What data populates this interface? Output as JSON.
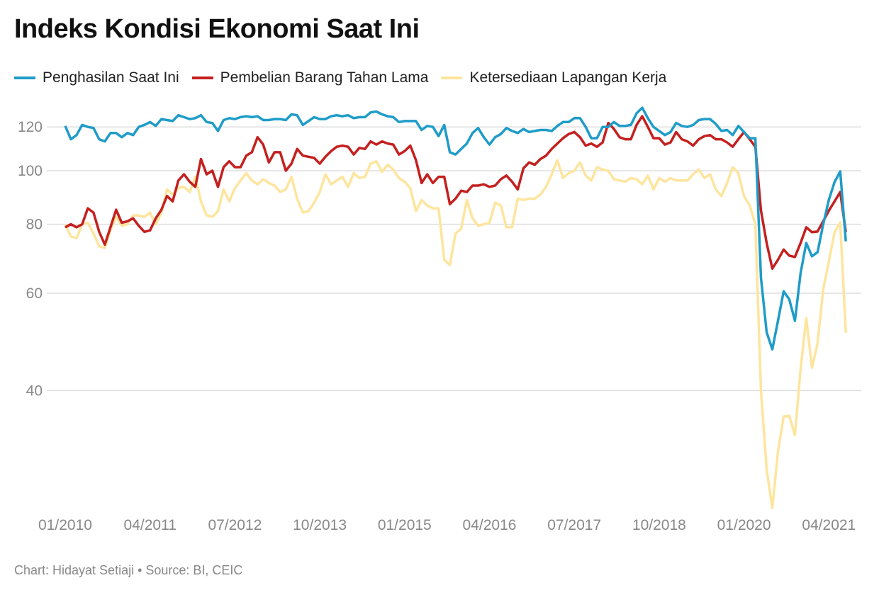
{
  "chart_data": {
    "type": "line",
    "title": "Indeks Kondisi Ekonomi Saat Ini",
    "xlabel": "",
    "ylabel": "",
    "yscale": "log",
    "ylim": [
      23,
      135
    ],
    "yticks": [
      40,
      60,
      80,
      100,
      120
    ],
    "grid": true,
    "legend_placement": "top-left",
    "x_start": "01/2010",
    "x_frequency": "monthly",
    "x_tick_labels": [
      {
        "label": "01/2010",
        "index": 0
      },
      {
        "label": "04/2011",
        "index": 15
      },
      {
        "label": "07/2012",
        "index": 30
      },
      {
        "label": "10/2013",
        "index": 45
      },
      {
        "label": "01/2015",
        "index": 60
      },
      {
        "label": "04/2016",
        "index": 75
      },
      {
        "label": "07/2017",
        "index": 90
      },
      {
        "label": "10/2018",
        "index": 105
      },
      {
        "label": "01/2020",
        "index": 120
      },
      {
        "label": "04/2021",
        "index": 135
      }
    ],
    "series": [
      {
        "name": "Penghasilan Saat Ini",
        "color": "#1f9cc8",
        "values": [
          120.5,
          114,
          116,
          121,
          120,
          119.5,
          114,
          113,
          117,
          117,
          115,
          117,
          116,
          120,
          121,
          122.5,
          120.5,
          124,
          123.5,
          123,
          126,
          125,
          124,
          124.5,
          126,
          122.5,
          122,
          118,
          123.5,
          124.5,
          124,
          125,
          125.5,
          125,
          125.5,
          123.5,
          123.5,
          124,
          124,
          123.5,
          126.5,
          126,
          121,
          123,
          125,
          124,
          124,
          125.5,
          126,
          125.5,
          126,
          124.5,
          125,
          125,
          127.5,
          128,
          126.5,
          125.5,
          125,
          122.5,
          123,
          123,
          123,
          118.5,
          120.5,
          120,
          115.5,
          121,
          108,
          107,
          109.5,
          112,
          117,
          119.5,
          115,
          111.5,
          115,
          116.5,
          119.5,
          118,
          117,
          119,
          117.5,
          118,
          118.5,
          118.5,
          118,
          120.5,
          122.5,
          122.5,
          124.5,
          124.5,
          120,
          114.5,
          114.5,
          120,
          120,
          122.5,
          120.5,
          120.5,
          121,
          127,
          130,
          124.5,
          120,
          118,
          116,
          117.5,
          122,
          120.5,
          120,
          121,
          123.5,
          124,
          124,
          121.5,
          118,
          118.5,
          116,
          120.5,
          117.5,
          114.5,
          114.5,
          64,
          51,
          47.5,
          53.5,
          60.5,
          58.5,
          53.5,
          65.3,
          74,
          70,
          71.2,
          80,
          88.6,
          95.4,
          99.7,
          74.5
        ]
      },
      {
        "name": "Pembelian Barang Tahan Lama",
        "color": "#c4201f",
        "values": [
          79,
          80,
          79,
          80,
          85.5,
          84,
          77.5,
          73.5,
          79,
          85,
          80.5,
          81,
          82,
          79.5,
          77.5,
          78,
          82,
          85,
          90,
          88,
          96,
          98.5,
          95.5,
          93.5,
          105,
          98.5,
          100,
          93.5,
          101.5,
          104,
          101.5,
          101.5,
          106.5,
          108,
          115,
          111.5,
          103.5,
          108,
          108,
          100,
          103,
          109.5,
          106.5,
          106,
          105.5,
          103,
          106,
          108.5,
          110.5,
          111,
          110.5,
          107,
          110,
          109.5,
          113,
          111.5,
          113,
          112,
          111.5,
          107,
          108.5,
          111,
          104.5,
          95,
          98.5,
          95,
          97.5,
          97.5,
          87,
          89,
          92,
          91.5,
          94,
          94,
          94.5,
          93.5,
          94,
          96.5,
          98,
          95.5,
          92.5,
          101,
          103.5,
          102.5,
          105,
          106.5,
          109.5,
          112,
          114.5,
          116.5,
          117.5,
          115,
          111,
          112,
          110.5,
          112.5,
          122,
          119,
          115,
          114,
          114,
          121,
          125.5,
          120,
          114.5,
          114.5,
          111.5,
          112.5,
          117.5,
          114,
          113,
          111,
          114,
          115.5,
          116,
          114,
          114,
          112.5,
          110.5,
          114,
          117.5,
          114,
          110.5,
          84.7,
          74,
          66.5,
          69,
          72,
          70.2,
          69.8,
          74,
          79,
          77.4,
          77.6,
          81,
          84.7,
          88,
          91.5,
          77.4
        ]
      },
      {
        "name": "Ketersediaan Lapangan Kerja",
        "color": "#fde59e",
        "values": [
          80,
          76,
          75.5,
          80,
          80.5,
          77,
          73,
          72.5,
          78,
          82.5,
          79.5,
          80,
          83,
          83,
          82.5,
          84,
          80,
          84,
          92.5,
          90.5,
          93,
          93.5,
          91.5,
          97.5,
          88,
          83,
          82.5,
          84.5,
          92.5,
          88,
          93,
          96,
          99,
          96,
          94.5,
          96.5,
          95,
          94,
          91.5,
          92.5,
          97.5,
          89,
          84,
          84.5,
          87.5,
          91.5,
          98.5,
          94.5,
          96,
          97.5,
          93.5,
          99,
          97,
          97.5,
          103,
          104,
          99.5,
          102.5,
          100.5,
          97,
          95.5,
          93,
          84.5,
          88.5,
          86.5,
          85.5,
          85.5,
          69,
          67.5,
          77,
          78.5,
          88.5,
          82,
          79.5,
          80,
          80.5,
          87.5,
          86.5,
          79,
          79,
          89,
          88.5,
          89,
          89,
          90.5,
          93.5,
          98.5,
          104.5,
          97,
          99,
          100,
          103.5,
          98,
          96,
          101.5,
          100.5,
          100,
          96.5,
          96,
          95.5,
          97,
          96.5,
          94.5,
          98,
          92.5,
          97,
          95.5,
          97,
          96,
          96,
          96,
          98.5,
          100.5,
          97,
          98.5,
          92.5,
          90,
          95,
          101.5,
          99,
          90,
          86.5,
          80,
          40,
          28.8,
          24.5,
          31,
          35.9,
          36,
          33.2,
          43.8,
          54.1,
          44,
          48.7,
          61,
          68.5,
          77.4,
          80.6,
          50.9
        ]
      }
    ]
  },
  "legend": {
    "items": [
      "Penghasilan Saat Ini",
      "Pembelian Barang Tahan Lama",
      "Ketersediaan Lapangan Kerja"
    ]
  },
  "footer": "Chart: Hidayat Setiaji • Source: BI, CEIC"
}
